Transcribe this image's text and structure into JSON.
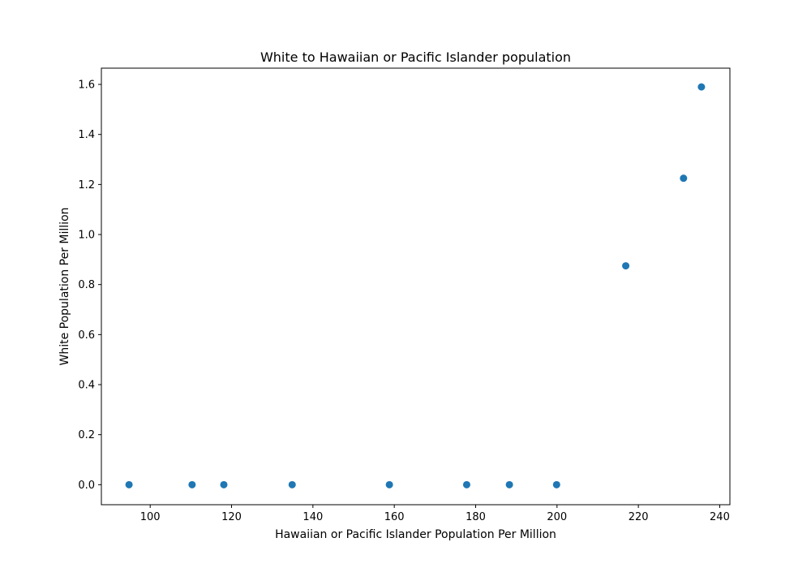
{
  "chart_data": {
    "type": "scatter",
    "title": "White to Hawaiian or Pacific Islander population",
    "xlabel": "Hawaiian or Pacific Islander Population Per Million",
    "ylabel": "White Population Per Million",
    "xlim": [
      88,
      242.5
    ],
    "ylim": [
      -0.08,
      1.665
    ],
    "xticks": [
      100,
      120,
      140,
      160,
      180,
      200,
      220,
      240
    ],
    "xtick_labels": [
      "100",
      "120",
      "140",
      "160",
      "180",
      "200",
      "220",
      "240"
    ],
    "yticks": [
      0.0,
      0.2,
      0.4,
      0.6,
      0.8,
      1.0,
      1.2,
      1.4,
      1.6
    ],
    "ytick_labels": [
      "0.0",
      "0.2",
      "0.4",
      "0.6",
      "0.8",
      "1.0",
      "1.2",
      "1.4",
      "1.6"
    ],
    "grid": false,
    "legend": "none",
    "series": [
      {
        "color": "#1f77b4",
        "points": [
          {
            "x": 94.8,
            "y": 0.0
          },
          {
            "x": 110.3,
            "y": 0.0
          },
          {
            "x": 118.1,
            "y": 0.0
          },
          {
            "x": 134.9,
            "y": 0.0
          },
          {
            "x": 158.8,
            "y": 0.0
          },
          {
            "x": 177.8,
            "y": 0.0
          },
          {
            "x": 188.3,
            "y": 0.0
          },
          {
            "x": 199.9,
            "y": 0.0
          },
          {
            "x": 216.9,
            "y": 0.875
          },
          {
            "x": 231.1,
            "y": 1.225
          },
          {
            "x": 235.5,
            "y": 1.59
          }
        ]
      }
    ]
  }
}
